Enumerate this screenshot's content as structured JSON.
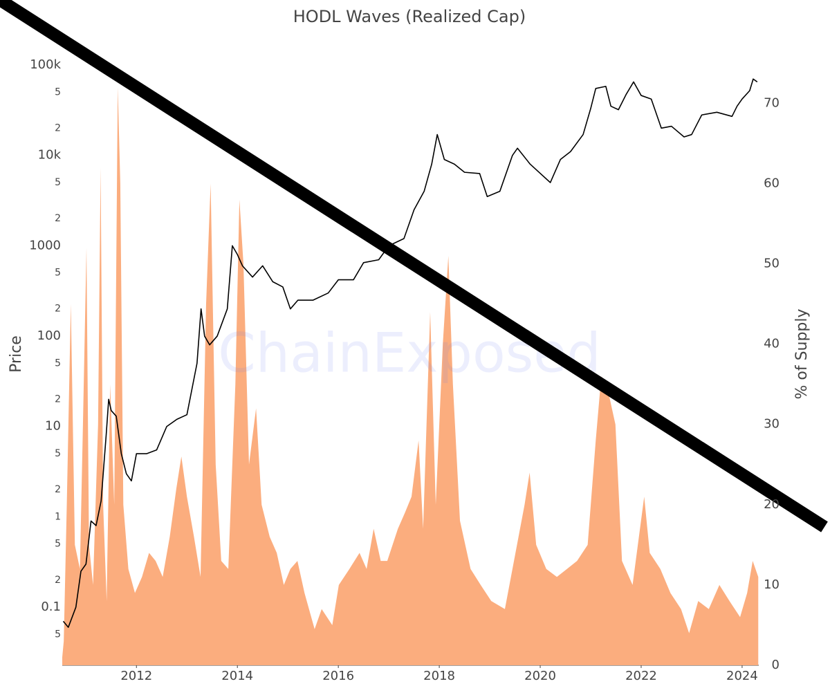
{
  "chart_data": {
    "type": "line",
    "title": "HODL Waves (Realized Cap)",
    "y_label": "Price",
    "y2_label": "% of Supply",
    "watermark": "ChainExposed",
    "ylog": true,
    "xlim": [
      2010.53,
      2024.33
    ],
    "xticks": [
      2012,
      2014,
      2016,
      2018,
      2020,
      2022,
      2024
    ],
    "ylim": [
      0.0228,
      182000
    ],
    "yticks": [
      {
        "value": 0.05,
        "label": "5"
      },
      0.1,
      {
        "value": 0.2,
        "label": "2"
      },
      {
        "value": 0.5,
        "label": "5"
      },
      1,
      {
        "value": 2,
        "label": "2"
      },
      {
        "value": 5,
        "label": "5"
      },
      10,
      {
        "value": 20,
        "label": "2"
      },
      {
        "value": 50,
        "label": "5"
      },
      100,
      {
        "value": 200,
        "label": "2"
      },
      {
        "value": 500,
        "label": "5"
      },
      1000,
      {
        "value": 2000,
        "label": "2"
      },
      {
        "value": 5000,
        "label": "5"
      },
      {
        "value": 10000,
        "label": "10k"
      },
      {
        "value": 20000,
        "label": "2"
      },
      {
        "value": 50000,
        "label": "5"
      },
      {
        "value": 100000,
        "label": "100k"
      }
    ],
    "y2lim": [
      0,
      77.7
    ],
    "y2ticks": [
      0,
      10,
      20,
      30,
      40,
      50,
      60,
      70
    ],
    "series": [
      {
        "type": "area",
        "axis": "y2",
        "color": "#fbad7e",
        "x": [
          2010.53,
          2010.56,
          2010.62,
          2010.7,
          2010.78,
          2010.88,
          2010.94,
          2011.01,
          2011.06,
          2011.14,
          2011.24,
          2011.29,
          2011.34,
          2011.41,
          2011.48,
          2011.56,
          2011.63,
          2011.68,
          2011.74,
          2011.84,
          2011.97,
          2012.11,
          2012.25,
          2012.38,
          2012.52,
          2012.66,
          2012.79,
          2012.89,
          2013.0,
          2013.14,
          2013.27,
          2013.38,
          2013.47,
          2013.57,
          2013.68,
          2013.82,
          2013.96,
          2014.04,
          2014.12,
          2014.23,
          2014.37,
          2014.48,
          2014.64,
          2014.78,
          2014.92,
          2015.05,
          2015.19,
          2015.33,
          2015.53,
          2015.67,
          2015.88,
          2016.01,
          2016.22,
          2016.42,
          2016.56,
          2016.7,
          2016.84,
          2016.97,
          2017.18,
          2017.32,
          2017.45,
          2017.59,
          2017.68,
          2017.82,
          2017.93,
          2018.07,
          2018.18,
          2018.27,
          2018.41,
          2018.62,
          2018.82,
          2019.03,
          2019.3,
          2019.51,
          2019.69,
          2019.79,
          2019.92,
          2020.12,
          2020.33,
          2020.53,
          2020.73,
          2020.94,
          2021.1,
          2021.21,
          2021.35,
          2021.49,
          2021.62,
          2021.83,
          2022.06,
          2022.17,
          2022.38,
          2022.58,
          2022.79,
          2022.95,
          2023.13,
          2023.34,
          2023.55,
          2023.75,
          2023.96,
          2024.1,
          2024.21,
          2024.32
        ],
        "values": [
          1,
          3,
          20,
          45,
          15,
          12,
          30,
          52,
          15,
          10,
          30,
          62,
          20,
          8,
          35,
          20,
          72,
          60,
          20,
          12,
          9,
          11,
          14,
          13,
          11,
          16,
          22,
          26,
          21,
          16,
          11,
          45,
          60,
          25,
          13,
          12,
          35,
          58,
          50,
          25,
          32,
          20,
          16,
          14,
          10,
          12,
          13,
          9,
          4.5,
          7,
          5,
          10,
          12,
          14,
          12,
          17,
          13,
          13,
          17,
          19,
          21,
          28,
          17,
          44,
          20,
          40,
          51,
          35,
          18,
          12,
          10,
          8,
          7,
          14,
          20,
          24,
          15,
          12,
          11,
          12,
          13,
          15,
          28,
          36,
          34,
          30,
          13,
          10,
          21,
          14,
          12,
          9,
          7,
          4,
          8,
          7,
          10,
          8,
          6,
          9,
          13,
          11
        ]
      },
      {
        "type": "line",
        "axis": "y",
        "color": "#000000",
        "x": [
          2010.55,
          2010.65,
          2010.8,
          2010.9,
          2011.0,
          2011.1,
          2011.2,
          2011.3,
          2011.4,
          2011.45,
          2011.5,
          2011.6,
          2011.7,
          2011.8,
          2011.9,
          2012.0,
          2012.2,
          2012.4,
          2012.6,
          2012.8,
          2013.0,
          2013.2,
          2013.28,
          2013.35,
          2013.45,
          2013.6,
          2013.8,
          2013.9,
          2014.0,
          2014.1,
          2014.3,
          2014.5,
          2014.7,
          2014.9,
          2015.05,
          2015.2,
          2015.5,
          2015.8,
          2016.0,
          2016.3,
          2016.5,
          2016.8,
          2017.0,
          2017.3,
          2017.5,
          2017.7,
          2017.85,
          2017.96,
          2018.1,
          2018.3,
          2018.5,
          2018.8,
          2018.95,
          2019.2,
          2019.45,
          2019.55,
          2019.8,
          2020.2,
          2020.4,
          2020.6,
          2020.85,
          2021.0,
          2021.1,
          2021.3,
          2021.4,
          2021.55,
          2021.7,
          2021.85,
          2022.0,
          2022.2,
          2022.4,
          2022.6,
          2022.85,
          2023.0,
          2023.2,
          2023.5,
          2023.8,
          2023.9,
          2024.0,
          2024.15,
          2024.22,
          2024.3
        ],
        "values": [
          0.07,
          0.06,
          0.1,
          0.25,
          0.3,
          0.9,
          0.8,
          1.5,
          8,
          20,
          15,
          13,
          5,
          3,
          2.5,
          5,
          5,
          5.5,
          10,
          12,
          13.5,
          50,
          200,
          100,
          80,
          100,
          200,
          1000,
          800,
          600,
          450,
          600,
          400,
          350,
          200,
          250,
          250,
          300,
          420,
          420,
          650,
          700,
          1000,
          1200,
          2500,
          4000,
          8000,
          17000,
          9000,
          8000,
          6500,
          6300,
          3500,
          4000,
          10000,
          12000,
          8000,
          5000,
          9000,
          11000,
          17000,
          33000,
          55000,
          58000,
          35000,
          32000,
          47000,
          65000,
          46000,
          42000,
          20000,
          21000,
          16000,
          17000,
          28000,
          30000,
          27000,
          35000,
          42000,
          52000,
          70000,
          65000
        ]
      }
    ]
  }
}
